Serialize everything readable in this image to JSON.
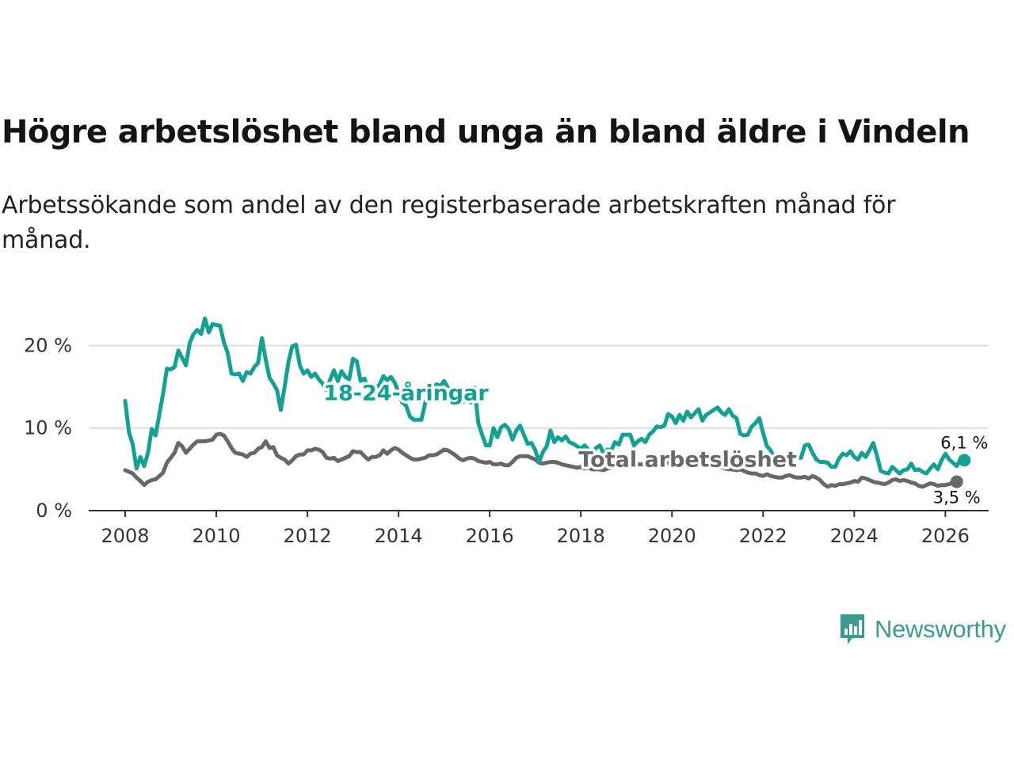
{
  "title": "Högre arbetslöshet bland unga än bland äldre i Vindeln",
  "subtitle": "Arbetssökande som andel av den registerbaserade arbetskraften månad för månad.",
  "brand": {
    "name": "Newsworthy",
    "color": "#3d9a93",
    "icon": "bar-chart-icon"
  },
  "chart_data": {
    "type": "line",
    "title": "Högre arbetslöshet bland unga än bland äldre i Vindeln",
    "xlabel": "",
    "ylabel": "",
    "xlim": [
      2007.2,
      2026.95
    ],
    "ylim": [
      0,
      23.5
    ],
    "grid": true,
    "x_ticks": [
      2008,
      2010,
      2012,
      2014,
      2016,
      2018,
      2020,
      2022,
      2024,
      2026
    ],
    "x_tick_labels": [
      "2008",
      "2010",
      "2012",
      "2014",
      "2016",
      "2018",
      "2020",
      "2022",
      "2024",
      "2026"
    ],
    "y_ticks": [
      0,
      10,
      20
    ],
    "y_tick_labels": [
      "0 %",
      "10 %",
      "20 %"
    ],
    "x_start": 2008.0,
    "x_step": 0.0833333,
    "series": [
      {
        "name": "18-24-åringar",
        "color": "#12a192",
        "label": "18-24-åringar",
        "end_label": "6,1 %",
        "values": [
          13.3,
          9.5,
          8.0,
          5.1,
          6.5,
          5.4,
          7.0,
          9.9,
          9.1,
          11.7,
          14.2,
          17.2,
          17.1,
          17.4,
          19.4,
          18.5,
          17.6,
          20.3,
          21.4,
          21.9,
          21.4,
          23.3,
          21.6,
          22.6,
          22.5,
          22.4,
          20.4,
          19.1,
          16.6,
          16.5,
          16.6,
          15.7,
          16.8,
          16.6,
          17.4,
          17.9,
          20.9,
          18.3,
          16.1,
          15.4,
          14.6,
          12.2,
          15.0,
          18.0,
          19.9,
          20.1,
          17.6,
          16.6,
          17.0,
          16.2,
          16.6,
          15.9,
          15.4,
          14.6,
          15.9,
          17.0,
          15.7,
          16.9,
          16.2,
          15.9,
          18.4,
          18.1,
          15.7,
          16.0,
          14.8,
          15.1,
          14.7,
          15.3,
          16.3,
          15.8,
          16.2,
          15.5,
          14.3,
          13.1,
          12.7,
          11.4,
          11.0,
          11.0,
          11.0,
          13.0,
          14.3,
          14.8,
          15.3,
          15.1,
          15.7,
          14.9,
          14.1,
          14.3,
          13.6,
          13.2,
          13.6,
          13.1,
          14.9,
          10.6,
          9.2,
          7.9,
          7.9,
          10.0,
          8.9,
          10.1,
          10.4,
          9.9,
          8.6,
          9.7,
          10.3,
          9.2,
          8.1,
          8.2,
          7.3,
          5.9,
          7.1,
          7.8,
          9.7,
          8.3,
          8.9,
          8.5,
          9.0,
          8.3,
          8.1,
          7.8,
          7.5,
          7.9,
          7.4,
          7.0,
          7.6,
          7.9,
          6.9,
          7.4,
          7.3,
          8.3,
          8.0,
          9.2,
          9.2,
          9.2,
          7.9,
          8.4,
          8.7,
          8.3,
          9.2,
          9.6,
          10.2,
          10.1,
          10.3,
          11.7,
          11.4,
          10.6,
          11.6,
          10.9,
          12.0,
          11.3,
          11.8,
          12.3,
          10.9,
          11.6,
          11.9,
          12.2,
          12.5,
          11.9,
          11.6,
          12.3,
          11.5,
          11.2,
          9.3,
          9.1,
          9.2,
          10.2,
          10.6,
          11.2,
          9.4,
          7.8,
          7.3,
          6.3,
          6.6,
          6.1,
          6.2,
          5.5,
          6.3,
          6.4,
          6.4,
          7.9,
          8.0,
          7.0,
          6.2,
          5.9,
          5.9,
          5.8,
          5.3,
          5.3,
          6.3,
          6.9,
          6.7,
          7.2,
          6.5,
          6.2,
          7.0,
          6.5,
          7.3,
          8.2,
          6.6,
          4.8,
          4.6,
          4.5,
          5.3,
          4.9,
          4.5,
          4.9,
          5.0,
          5.7,
          4.9,
          5.0,
          4.7,
          4.5,
          5.1,
          5.6,
          5.0,
          6.1,
          6.9,
          6.2,
          5.8,
          5.4,
          6.2,
          6.1
        ]
      },
      {
        "name": "Total arbetslöshet",
        "color": "#68686c",
        "label": "Total arbetslöshet",
        "end_label": "3,5 %",
        "values": [
          4.9,
          4.7,
          4.5,
          4.0,
          3.6,
          3.1,
          3.5,
          3.7,
          3.8,
          4.2,
          4.6,
          5.8,
          6.4,
          7.0,
          8.2,
          7.8,
          7.0,
          7.5,
          8.0,
          8.4,
          8.4,
          8.4,
          8.5,
          8.6,
          9.2,
          9.3,
          9.1,
          8.4,
          7.6,
          7.0,
          6.9,
          6.8,
          6.5,
          6.9,
          7.0,
          7.5,
          7.7,
          8.4,
          7.6,
          7.7,
          6.7,
          6.4,
          6.2,
          5.7,
          6.1,
          6.6,
          6.8,
          6.8,
          7.3,
          7.3,
          7.5,
          7.4,
          7.1,
          6.4,
          6.3,
          6.4,
          6.0,
          6.2,
          6.4,
          6.6,
          7.2,
          7.1,
          7.1,
          6.6,
          6.2,
          6.5,
          6.5,
          6.7,
          7.3,
          6.9,
          7.3,
          7.6,
          7.4,
          7.0,
          6.7,
          6.4,
          6.2,
          6.2,
          6.3,
          6.4,
          6.7,
          6.7,
          6.8,
          7.1,
          7.4,
          7.3,
          7.0,
          6.7,
          6.3,
          6.1,
          6.3,
          6.4,
          6.3,
          6.0,
          5.9,
          5.8,
          5.9,
          5.6,
          5.6,
          5.7,
          5.5,
          5.5,
          5.9,
          6.4,
          6.6,
          6.6,
          6.6,
          6.4,
          6.2,
          5.8,
          5.7,
          5.8,
          5.9,
          5.9,
          5.8,
          5.6,
          5.5,
          5.4,
          5.3,
          5.2,
          5.3,
          5.1,
          5.2,
          5.0,
          5.0,
          5.0,
          4.9,
          5.1,
          5.2,
          5.3,
          5.4,
          5.4,
          5.3,
          5.4,
          5.5,
          5.6,
          5.6,
          5.7,
          5.6,
          5.8,
          5.9,
          5.8,
          5.6,
          5.8,
          5.8,
          5.7,
          5.9,
          5.8,
          5.7,
          5.7,
          5.8,
          5.6,
          5.5,
          5.6,
          5.5,
          5.4,
          5.2,
          5.3,
          5.1,
          5.0,
          5.0,
          4.9,
          5.0,
          4.8,
          4.6,
          4.5,
          4.5,
          4.3,
          4.2,
          4.4,
          4.2,
          4.1,
          4.0,
          4.0,
          4.2,
          4.3,
          4.1,
          4.0,
          4.0,
          4.1,
          3.9,
          4.2,
          4.0,
          3.7,
          3.2,
          2.9,
          3.1,
          3.0,
          3.2,
          3.2,
          3.3,
          3.4,
          3.6,
          3.5,
          4.0,
          3.9,
          3.7,
          3.5,
          3.4,
          3.3,
          3.2,
          3.4,
          3.7,
          3.8,
          3.6,
          3.7,
          3.6,
          3.4,
          3.3,
          3.0,
          2.9,
          3.1,
          3.3,
          3.2,
          3.0,
          3.1,
          3.1,
          3.2,
          3.4,
          3.5
        ]
      }
    ]
  }
}
